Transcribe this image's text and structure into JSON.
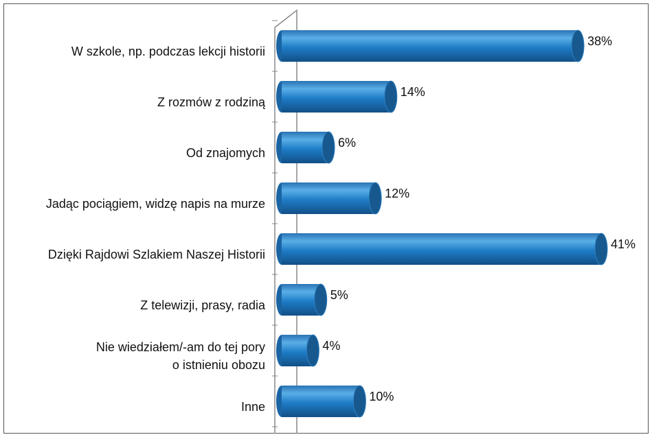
{
  "chart_data": {
    "type": "bar",
    "orientation": "horizontal",
    "categories": [
      "W szkole, np. podczas lekcji historii",
      "Z rozmów z rodziną",
      "Od znajomych",
      "Jadąc pociągiem, widzę napis na murze",
      "Dzięki Rajdowi Szlakiem Naszej Historii",
      "Z telewizji, prasy, radia",
      "Nie wiedziałem/-am do tej pory\no istnieniu obozu",
      "Inne"
    ],
    "values": [
      38,
      14,
      6,
      12,
      41,
      5,
      4,
      10
    ],
    "value_labels": [
      "38%",
      "14%",
      "6%",
      "12%",
      "41%",
      "5%",
      "4%",
      "10%"
    ],
    "color": "#1f78c1"
  }
}
